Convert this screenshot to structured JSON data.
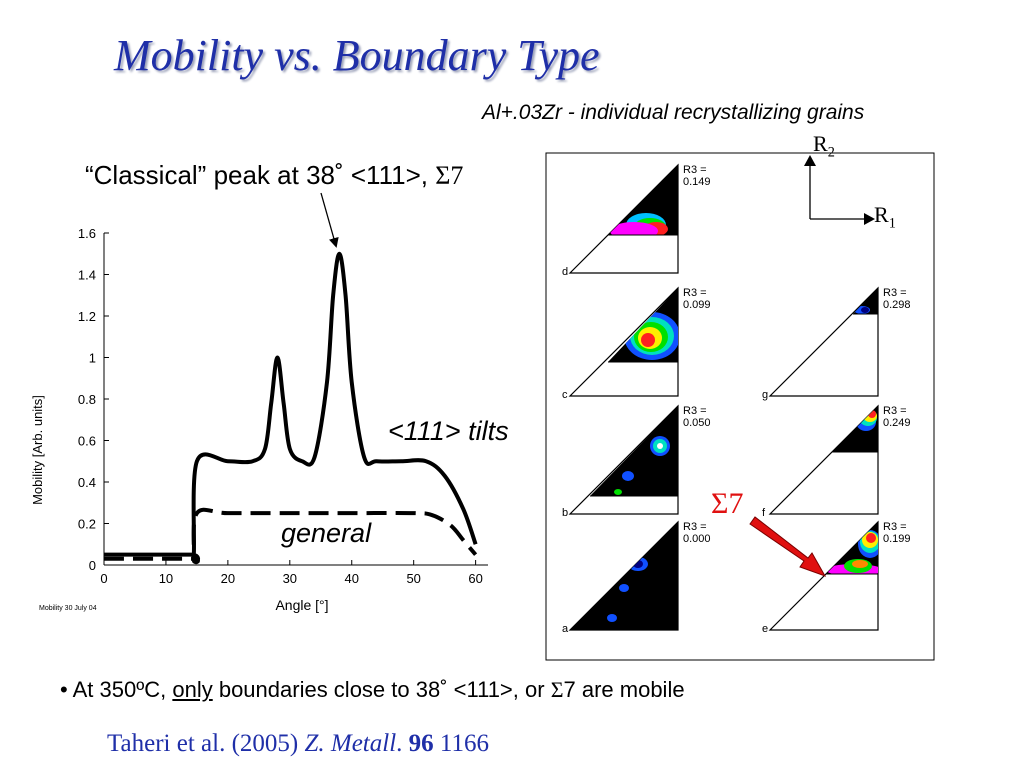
{
  "title": "Mobility vs. Boundary Type",
  "subtitle": "Al+.03Zr - individual recrystallizing grains",
  "peak_label": {
    "prefix": "“Classical” peak at 38˚  <111>, ",
    "sigma": "Σ7"
  },
  "curve_labels": {
    "tilts": "<111> tilts",
    "general": "general"
  },
  "chart_footnote": "Mobility  30 July 04",
  "chart_data": {
    "type": "line",
    "title": "",
    "xlabel": "Angle [°]",
    "ylabel": "Mobility [Arb. units]",
    "xlim": [
      0,
      62
    ],
    "ylim": [
      0,
      1.6
    ],
    "xticks": [
      0,
      10,
      20,
      30,
      40,
      50,
      60
    ],
    "yticks": [
      0,
      0.2,
      0.4,
      0.6,
      0.8,
      1,
      1.2,
      1.4,
      1.6
    ],
    "grid": false,
    "series": [
      {
        "name": "<111> tilts",
        "style": "solid",
        "x": [
          0,
          14,
          14.5,
          15,
          20,
          24,
          26,
          27,
          28,
          29,
          30,
          32,
          34,
          36,
          37,
          38,
          39,
          40,
          42,
          44,
          48,
          52,
          55,
          58,
          60
        ],
        "y": [
          0.05,
          0.05,
          0.05,
          0.5,
          0.5,
          0.5,
          0.56,
          0.78,
          1.0,
          0.78,
          0.56,
          0.5,
          0.52,
          0.88,
          1.3,
          1.5,
          1.3,
          0.88,
          0.52,
          0.5,
          0.5,
          0.5,
          0.43,
          0.27,
          0.1
        ]
      },
      {
        "name": "general",
        "style": "dashed",
        "x": [
          0,
          14,
          14.5,
          15,
          20,
          30,
          40,
          50,
          53,
          56,
          58,
          60
        ],
        "y": [
          0.03,
          0.03,
          0.03,
          0.25,
          0.25,
          0.25,
          0.25,
          0.25,
          0.24,
          0.19,
          0.12,
          0.05
        ]
      }
    ]
  },
  "maps": [
    {
      "letter": "d",
      "r3_label": "R3 =",
      "r3_value": "0.149"
    },
    {
      "letter": "c",
      "r3_label": "R3 =",
      "r3_value": "0.099"
    },
    {
      "letter": "g",
      "r3_label": "R3 =",
      "r3_value": "0.298"
    },
    {
      "letter": "b",
      "r3_label": "R3 =",
      "r3_value": "0.050"
    },
    {
      "letter": "f",
      "r3_label": "R3 =",
      "r3_value": "0.249"
    },
    {
      "letter": "a",
      "r3_label": "R3 =",
      "r3_value": "0.000"
    },
    {
      "letter": "e",
      "r3_label": "R3 =",
      "r3_value": "0.199"
    }
  ],
  "axis_labels": {
    "r2": "R",
    "r2_sub": "2",
    "r1": "R",
    "r1_sub": "1"
  },
  "sigma7_label": "Σ7",
  "colors": {
    "title": "#1f2fa8",
    "arrow": "#e01010",
    "citation": "#1f2fa8"
  },
  "bullet": {
    "prefix": "• At 350ºC, ",
    "only": "only",
    "middle": " boundaries  close to 38˚  <111>, or ",
    "sigma": "Σ",
    "suffix": "7 are mobile"
  },
  "citation": {
    "authors": "Taheri et al. (2005)  ",
    "journal": "Z. Metall",
    "dot": ". ",
    "volume": "96",
    "pages": " 1166"
  }
}
